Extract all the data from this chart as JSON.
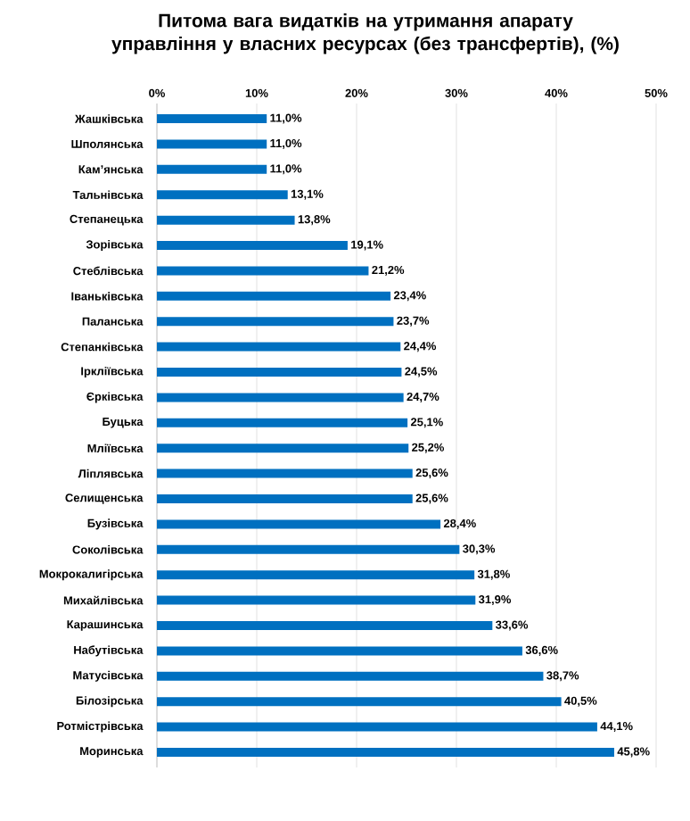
{
  "chart_data": {
    "type": "bar",
    "orientation": "horizontal",
    "title": "Питома вага видатків на утримання апарату управління у власних ресурсах (без трансфертів), (%)",
    "categories": [
      "Жашківська",
      "Шполянська",
      "Кам’янська",
      "Тальнівська",
      "Степанецька",
      "Зорівська",
      "Стеблівська",
      "Іваньківська",
      "Паланська",
      "Степанківська",
      "Ірклiївська",
      "Єрківська",
      "Буцька",
      "Мліївська",
      "Ліплявська",
      "Селищенська",
      "Бузівська",
      "Соколівська",
      "Мокрокалигірська",
      "Михайлівська",
      "Карашинська",
      "Набутівська",
      "Матусівська",
      "Білозірська",
      "Ротмістрівська",
      "Моринська"
    ],
    "values": [
      11.0,
      11.0,
      11.0,
      13.1,
      13.8,
      19.1,
      21.2,
      23.4,
      23.7,
      24.4,
      24.5,
      24.7,
      25.1,
      25.2,
      25.6,
      25.6,
      28.4,
      30.3,
      31.8,
      31.9,
      33.6,
      36.6,
      38.7,
      40.5,
      44.1,
      45.8
    ],
    "value_labels": [
      "11,0%",
      "11,0%",
      "11,0%",
      "13,1%",
      "13,8%",
      "19,1%",
      "21,2%",
      "23,4%",
      "23,7%",
      "24,4%",
      "24,5%",
      "24,7%",
      "25,1%",
      "25,2%",
      "25,6%",
      "25,6%",
      "28,4%",
      "30,3%",
      "31,8%",
      "31,9%",
      "33,6%",
      "36,6%",
      "38,7%",
      "40,5%",
      "44,1%",
      "45,8%"
    ],
    "color": "#0070c0",
    "xlim": [
      0,
      50
    ],
    "xticks": [
      {
        "value": 0,
        "label": "0%"
      },
      {
        "value": 10,
        "label": "10%"
      },
      {
        "value": 20,
        "label": "20%"
      },
      {
        "value": 30,
        "label": "30%"
      },
      {
        "value": 40,
        "label": "40%"
      },
      {
        "value": 50,
        "label": "50%"
      }
    ],
    "grid": "x"
  }
}
